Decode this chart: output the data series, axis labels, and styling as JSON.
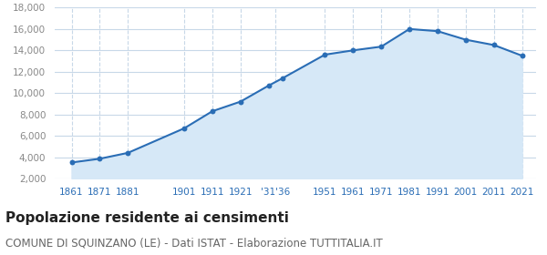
{
  "years": [
    1861,
    1871,
    1881,
    1901,
    1911,
    1921,
    1931,
    1936,
    1951,
    1961,
    1971,
    1981,
    1991,
    2001,
    2011,
    2021
  ],
  "x_labels": [
    "1861",
    "1871",
    "1881",
    "1901",
    "1911",
    "1921",
    "'31'36",
    "1951",
    "1961",
    "1971",
    "1981",
    "1991",
    "2001",
    "2011",
    "2021"
  ],
  "population": [
    3500,
    3850,
    4400,
    6700,
    8300,
    9200,
    10700,
    11400,
    13600,
    14000,
    14350,
    16000,
    15800,
    15000,
    14500,
    13500
  ],
  "line_color": "#2a6db5",
  "fill_color": "#d6e8f7",
  "marker_color": "#2a6db5",
  "bg_color": "#ffffff",
  "grid_color": "#c8d8e8",
  "title": "Popolazione residente ai censimenti",
  "subtitle": "COMUNE DI SQUINZANO (LE) - Dati ISTAT - Elaborazione TUTTITALIA.IT",
  "ylim": [
    2000,
    18000
  ],
  "yticks": [
    2000,
    4000,
    6000,
    8000,
    10000,
    12000,
    14000,
    16000,
    18000
  ],
  "tick_color": "#2a6db5",
  "title_fontsize": 11,
  "subtitle_fontsize": 8.5
}
